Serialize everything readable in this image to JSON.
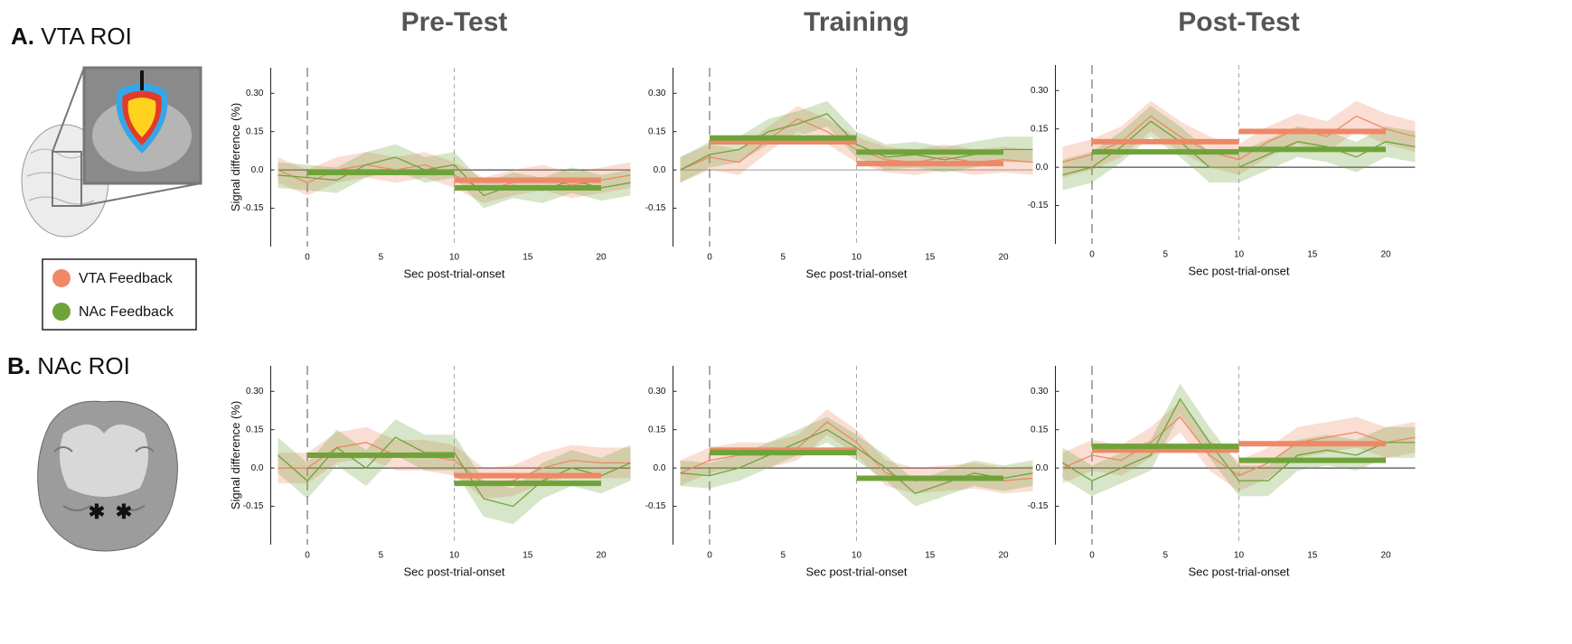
{
  "rows": [
    {
      "letter": "A.",
      "label": "VTA ROI"
    },
    {
      "letter": "B.",
      "label": "NAc ROI"
    }
  ],
  "legend": [
    {
      "name": "VTA Feedback",
      "color": "#ee8866"
    },
    {
      "name": "NAc Feedback",
      "color": "#6fa33a"
    }
  ],
  "chart_data": [
    {
      "type": "line",
      "title": "Pre-Test",
      "ylabel": "Signal difference (%)",
      "xlabel": "Sec post-trial-onset",
      "x": [
        -2,
        0,
        2,
        4,
        6,
        8,
        10,
        12,
        14,
        16,
        18,
        20,
        22
      ],
      "xlim": [
        -2,
        22
      ],
      "xticks": [
        0,
        5,
        10,
        15,
        20
      ],
      "ylim": [
        -0.3,
        0.4
      ],
      "yticks": [
        {
          "value": 0.3,
          "label": "0.30"
        },
        0.15,
        {
          "value": 0,
          "label": "0.0"
        },
        -0.15
      ],
      "vlines": [
        0,
        10
      ],
      "series": [
        {
          "color": "#ee8866",
          "values": [
            0.0,
            -0.05,
            0.0,
            0.02,
            0.0,
            0.02,
            -0.02,
            -0.08,
            -0.05,
            -0.03,
            -0.06,
            -0.04,
            -0.02
          ],
          "error": [
            0.05,
            0.05,
            0.05,
            0.05,
            0.05,
            0.05,
            0.05,
            0.05,
            0.05,
            0.05,
            0.05,
            0.05,
            0.05
          ],
          "means": [
            {
              "start": 0,
              "end": 10,
              "value": -0.01
            },
            {
              "start": 10,
              "end": 20,
              "value": -0.04
            }
          ]
        },
        {
          "color": "#6fa33a",
          "values": [
            -0.02,
            -0.03,
            -0.04,
            0.02,
            0.05,
            0.0,
            0.02,
            -0.1,
            -0.06,
            -0.08,
            -0.04,
            -0.07,
            -0.05
          ],
          "error": [
            0.05,
            0.05,
            0.05,
            0.05,
            0.05,
            0.05,
            0.05,
            0.05,
            0.05,
            0.05,
            0.05,
            0.05,
            0.05
          ],
          "means": [
            {
              "start": 0,
              "end": 10,
              "value": -0.01
            },
            {
              "start": 10,
              "end": 20,
              "value": -0.07
            }
          ]
        }
      ]
    },
    {
      "type": "line",
      "title": "Training",
      "xlabel": "Sec post-trial-onset",
      "x": [
        -2,
        0,
        2,
        4,
        6,
        8,
        10,
        12,
        14,
        16,
        18,
        20,
        22
      ],
      "xlim": [
        -2,
        22
      ],
      "xticks": [
        0,
        5,
        10,
        15,
        20
      ],
      "ylim": [
        -0.3,
        0.4
      ],
      "yticks": [
        {
          "value": 0.3,
          "label": "0.30"
        },
        0.15,
        {
          "value": 0,
          "label": "0.0"
        },
        -0.15
      ],
      "vlines": [
        0,
        10
      ],
      "series": [
        {
          "color": "#ee8866",
          "values": [
            0.0,
            0.05,
            0.03,
            0.12,
            0.2,
            0.15,
            0.08,
            0.04,
            0.03,
            0.05,
            0.03,
            0.04,
            0.03
          ],
          "error": [
            0.05,
            0.05,
            0.05,
            0.05,
            0.05,
            0.05,
            0.05,
            0.05,
            0.05,
            0.05,
            0.05,
            0.05,
            0.05
          ],
          "means": [
            {
              "start": 0,
              "end": 10,
              "value": 0.11
            },
            {
              "start": 10,
              "end": 20,
              "value": 0.025
            }
          ]
        },
        {
          "color": "#6fa33a",
          "values": [
            0.0,
            0.06,
            0.08,
            0.15,
            0.18,
            0.22,
            0.1,
            0.05,
            0.06,
            0.04,
            0.06,
            0.08,
            0.08
          ],
          "error": [
            0.05,
            0.05,
            0.05,
            0.05,
            0.05,
            0.05,
            0.05,
            0.05,
            0.05,
            0.05,
            0.05,
            0.05,
            0.05
          ],
          "means": [
            {
              "start": 0,
              "end": 10,
              "value": 0.125
            },
            {
              "start": 10,
              "end": 20,
              "value": 0.07
            }
          ]
        }
      ]
    },
    {
      "type": "line",
      "title": "Post-Test",
      "xlabel": "Sec post-trial-onset",
      "x": [
        -2,
        0,
        2,
        4,
        6,
        8,
        10,
        12,
        14,
        16,
        18,
        20,
        22
      ],
      "xlim": [
        -2,
        22
      ],
      "xticks": [
        0,
        5,
        10,
        15,
        20
      ],
      "ylim": [
        -0.3,
        0.4
      ],
      "yticks": [
        {
          "value": 0.3,
          "label": "0.30"
        },
        0.15,
        {
          "value": 0,
          "label": "0.0"
        },
        -0.15
      ],
      "vlines": [
        0,
        10
      ],
      "series": [
        {
          "color": "#ee8866",
          "values": [
            0.02,
            0.05,
            0.1,
            0.2,
            0.12,
            0.06,
            0.03,
            0.1,
            0.15,
            0.12,
            0.2,
            0.15,
            0.12
          ],
          "error": [
            0.06,
            0.06,
            0.06,
            0.06,
            0.06,
            0.06,
            0.06,
            0.06,
            0.06,
            0.06,
            0.06,
            0.06,
            0.06
          ],
          "means": [
            {
              "start": 0,
              "end": 10,
              "value": 0.1
            },
            {
              "start": 10,
              "end": 20,
              "value": 0.14
            }
          ]
        },
        {
          "color": "#6fa33a",
          "values": [
            -0.03,
            0.0,
            0.08,
            0.18,
            0.1,
            0.0,
            0.0,
            0.05,
            0.1,
            0.08,
            0.04,
            0.1,
            0.08
          ],
          "error": [
            0.06,
            0.06,
            0.06,
            0.06,
            0.06,
            0.06,
            0.06,
            0.06,
            0.06,
            0.06,
            0.06,
            0.06,
            0.06
          ],
          "means": [
            {
              "start": 0,
              "end": 10,
              "value": 0.06
            },
            {
              "start": 10,
              "end": 20,
              "value": 0.07
            }
          ]
        }
      ]
    },
    {
      "type": "line",
      "ylabel": "Signal difference (%)",
      "xlabel": "Sec post-trial-onset",
      "x": [
        -2,
        0,
        2,
        4,
        6,
        8,
        10,
        12,
        14,
        16,
        18,
        20,
        22
      ],
      "xlim": [
        -2,
        22
      ],
      "xticks": [
        0,
        5,
        10,
        15,
        20
      ],
      "ylim": [
        -0.3,
        0.4
      ],
      "yticks": [
        {
          "value": 0.3,
          "label": "0.30"
        },
        0.15,
        {
          "value": 0,
          "label": "0.0"
        },
        -0.15
      ],
      "vlines": [
        0,
        10
      ],
      "series": [
        {
          "color": "#ee8866",
          "values": [
            0.0,
            0.0,
            0.08,
            0.1,
            0.05,
            0.05,
            0.03,
            -0.06,
            -0.05,
            0.0,
            0.03,
            0.02,
            0.02
          ],
          "error": [
            0.06,
            0.06,
            0.06,
            0.06,
            0.06,
            0.06,
            0.06,
            0.06,
            0.06,
            0.06,
            0.06,
            0.06,
            0.06
          ],
          "means": [
            {
              "start": 0,
              "end": 10,
              "value": 0.05
            },
            {
              "start": 10,
              "end": 20,
              "value": -0.03
            }
          ]
        },
        {
          "color": "#6fa33a",
          "values": [
            0.05,
            -0.05,
            0.08,
            0.0,
            0.12,
            0.06,
            0.06,
            -0.12,
            -0.15,
            -0.05,
            0.0,
            -0.03,
            0.02
          ],
          "error": [
            0.07,
            0.07,
            0.07,
            0.07,
            0.07,
            0.07,
            0.07,
            0.07,
            0.07,
            0.07,
            0.07,
            0.07,
            0.07
          ],
          "means": [
            {
              "start": 0,
              "end": 10,
              "value": 0.05
            },
            {
              "start": 10,
              "end": 20,
              "value": -0.06
            }
          ]
        }
      ]
    },
    {
      "type": "line",
      "xlabel": "Sec post-trial-onset",
      "x": [
        -2,
        0,
        2,
        4,
        6,
        8,
        10,
        12,
        14,
        16,
        18,
        20,
        22
      ],
      "xlim": [
        -2,
        22
      ],
      "xticks": [
        0,
        5,
        10,
        15,
        20
      ],
      "ylim": [
        -0.3,
        0.4
      ],
      "yticks": [
        {
          "value": 0.3,
          "label": "0.30"
        },
        0.15,
        {
          "value": 0,
          "label": "0.0"
        },
        -0.15
      ],
      "vlines": [
        0,
        10
      ],
      "series": [
        {
          "color": "#ee8866",
          "values": [
            -0.02,
            0.03,
            0.05,
            0.05,
            0.08,
            0.18,
            0.1,
            -0.02,
            -0.05,
            -0.04,
            -0.03,
            -0.05,
            -0.04
          ],
          "error": [
            0.05,
            0.05,
            0.05,
            0.05,
            0.05,
            0.05,
            0.05,
            0.05,
            0.05,
            0.05,
            0.05,
            0.05,
            0.05
          ],
          "means": [
            {
              "start": 0,
              "end": 10,
              "value": 0.07
            },
            {
              "start": 10,
              "end": 20,
              "value": -0.04
            }
          ]
        },
        {
          "color": "#6fa33a",
          "values": [
            -0.02,
            -0.03,
            0.0,
            0.05,
            0.1,
            0.15,
            0.08,
            0.0,
            -0.1,
            -0.06,
            -0.02,
            -0.04,
            -0.02
          ],
          "error": [
            0.05,
            0.05,
            0.05,
            0.05,
            0.05,
            0.05,
            0.05,
            0.05,
            0.05,
            0.05,
            0.05,
            0.05,
            0.05
          ],
          "means": [
            {
              "start": 0,
              "end": 10,
              "value": 0.06
            },
            {
              "start": 10,
              "end": 20,
              "value": -0.04
            }
          ]
        }
      ]
    },
    {
      "type": "line",
      "xlabel": "Sec post-trial-onset",
      "x": [
        -2,
        0,
        2,
        4,
        6,
        8,
        10,
        12,
        14,
        16,
        18,
        20,
        22
      ],
      "xlim": [
        -2,
        22
      ],
      "xticks": [
        0,
        5,
        10,
        15,
        20
      ],
      "ylim": [
        -0.3,
        0.4
      ],
      "yticks": [
        {
          "value": 0.3,
          "label": "0.30"
        },
        0.15,
        {
          "value": 0,
          "label": "0.0"
        },
        -0.15
      ],
      "vlines": [
        0,
        10
      ],
      "series": [
        {
          "color": "#ee8866",
          "values": [
            0.0,
            0.05,
            0.03,
            0.1,
            0.2,
            0.05,
            -0.03,
            0.02,
            0.1,
            0.12,
            0.14,
            0.1,
            0.12
          ],
          "error": [
            0.06,
            0.06,
            0.06,
            0.06,
            0.06,
            0.06,
            0.06,
            0.06,
            0.06,
            0.06,
            0.06,
            0.06,
            0.06
          ],
          "means": [
            {
              "start": 0,
              "end": 10,
              "value": 0.07
            },
            {
              "start": 10,
              "end": 20,
              "value": 0.095
            }
          ]
        },
        {
          "color": "#6fa33a",
          "values": [
            0.02,
            -0.05,
            0.0,
            0.05,
            0.27,
            0.1,
            -0.05,
            -0.05,
            0.05,
            0.07,
            0.05,
            0.1,
            0.1
          ],
          "error": [
            0.06,
            0.06,
            0.06,
            0.06,
            0.06,
            0.06,
            0.06,
            0.06,
            0.06,
            0.06,
            0.06,
            0.06,
            0.06
          ],
          "means": [
            {
              "start": 0,
              "end": 10,
              "value": 0.085
            },
            {
              "start": 10,
              "end": 20,
              "value": 0.03
            }
          ]
        }
      ]
    }
  ]
}
